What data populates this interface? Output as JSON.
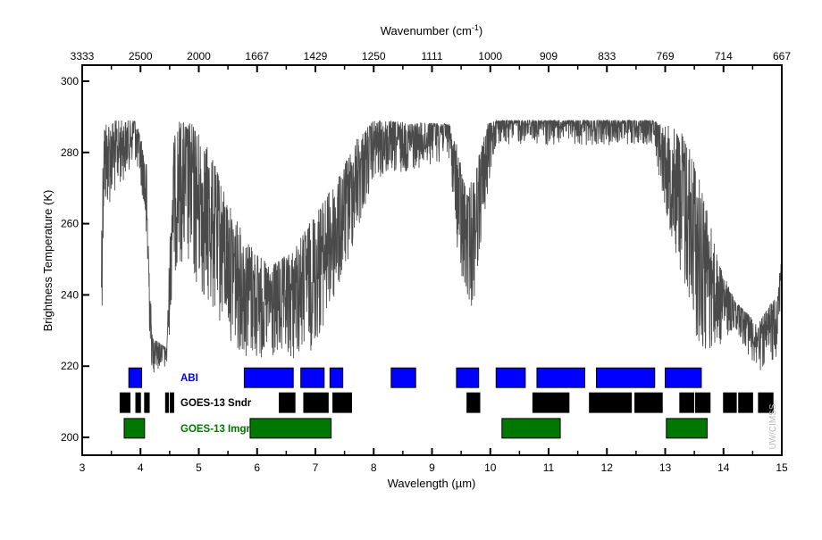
{
  "chart_data": {
    "type": "line",
    "title": "",
    "xlabel": "Wavelength (µm)",
    "x2label_main": "Wavenumber (cm",
    "x2label_sup": "-1",
    "x2label_close": ")",
    "ylabel": "Brightness Temperature (K)",
    "xlim": [
      3,
      15
    ],
    "ylim": [
      195,
      304.5
    ],
    "xticks": [
      3,
      4,
      5,
      6,
      7,
      8,
      9,
      10,
      11,
      12,
      13,
      14,
      15
    ],
    "x2ticks": [
      "3333",
      "2500",
      "2000",
      "1667",
      "1429",
      "1250",
      "1111",
      "1000",
      "909",
      "833",
      "769",
      "714",
      "667"
    ],
    "yticks": [
      200,
      220,
      240,
      260,
      280,
      300
    ],
    "spectrum": {
      "color": "#4a4a4a",
      "upper_envelope": [
        [
          3.33,
          262
        ],
        [
          3.37,
          289
        ],
        [
          3.9,
          289
        ],
        [
          4.0,
          285
        ],
        [
          4.1,
          278
        ],
        [
          4.15,
          250
        ],
        [
          4.2,
          228
        ],
        [
          4.45,
          225
        ],
        [
          4.55,
          282
        ],
        [
          4.65,
          289
        ],
        [
          4.9,
          288
        ],
        [
          5.2,
          280
        ],
        [
          5.5,
          266
        ],
        [
          5.8,
          256
        ],
        [
          6.2,
          248
        ],
        [
          6.6,
          252
        ],
        [
          7.0,
          263
        ],
        [
          7.4,
          273
        ],
        [
          7.7,
          284
        ],
        [
          8.0,
          289
        ],
        [
          9.3,
          288
        ],
        [
          9.45,
          281
        ],
        [
          9.6,
          268
        ],
        [
          9.75,
          276
        ],
        [
          9.95,
          288
        ],
        [
          10.1,
          289
        ],
        [
          12.8,
          289
        ],
        [
          13.3,
          286
        ],
        [
          13.5,
          278
        ],
        [
          13.7,
          266
        ],
        [
          13.9,
          250
        ],
        [
          14.2,
          238
        ],
        [
          14.6,
          232
        ],
        [
          14.9,
          240
        ],
        [
          15,
          250
        ]
      ],
      "lower_envelope": [
        [
          3.33,
          226
        ],
        [
          3.37,
          262
        ],
        [
          3.9,
          278
        ],
        [
          4.05,
          266
        ],
        [
          4.15,
          230
        ],
        [
          4.2,
          218
        ],
        [
          4.45,
          218
        ],
        [
          4.55,
          242
        ],
        [
          4.65,
          250
        ],
        [
          5.0,
          240
        ],
        [
          5.5,
          228
        ],
        [
          5.8,
          222
        ],
        [
          6.5,
          220
        ],
        [
          7.0,
          225
        ],
        [
          7.4,
          240
        ],
        [
          7.7,
          256
        ],
        [
          8.0,
          272
        ],
        [
          9.3,
          278
        ],
        [
          9.5,
          240
        ],
        [
          9.7,
          236
        ],
        [
          9.9,
          262
        ],
        [
          10.1,
          282
        ],
        [
          12.8,
          282
        ],
        [
          13.0,
          264
        ],
        [
          13.5,
          228
        ],
        [
          13.7,
          222
        ],
        [
          14.2,
          230
        ],
        [
          14.6,
          218
        ],
        [
          14.9,
          222
        ],
        [
          15,
          242
        ]
      ]
    },
    "instruments": [
      {
        "name": "ABI",
        "color": "#0000ff",
        "level": [
          214,
          219.5
        ],
        "bands": [
          [
            3.8,
            4.02
          ],
          [
            5.78,
            6.62
          ],
          [
            6.75,
            7.15
          ],
          [
            7.25,
            7.47
          ],
          [
            8.3,
            8.72
          ],
          [
            9.42,
            9.8
          ],
          [
            10.1,
            10.6
          ],
          [
            10.8,
            11.62
          ],
          [
            11.82,
            12.82
          ],
          [
            13.0,
            13.62
          ]
        ]
      },
      {
        "name": "GOES-13 Sndr",
        "color": "#000000",
        "level": [
          207,
          212.5
        ],
        "bands": [
          [
            3.65,
            3.82
          ],
          [
            3.92,
            4.0
          ],
          [
            4.07,
            4.15
          ],
          [
            4.43,
            4.48
          ],
          [
            4.51,
            4.57
          ],
          [
            6.38,
            6.65
          ],
          [
            6.8,
            7.22
          ],
          [
            7.3,
            7.62
          ],
          [
            9.6,
            9.82
          ],
          [
            10.73,
            11.35
          ],
          [
            11.7,
            12.42
          ],
          [
            12.48,
            12.95
          ],
          [
            13.25,
            13.49
          ],
          [
            13.52,
            13.77
          ],
          [
            14.0,
            14.22
          ],
          [
            14.26,
            14.5
          ],
          [
            14.6,
            14.85
          ]
        ]
      },
      {
        "name": "GOES-13 Imgr",
        "color": "#007700",
        "level": [
          199.8,
          205.3
        ],
        "bands": [
          [
            3.72,
            4.07
          ],
          [
            5.88,
            7.27
          ],
          [
            10.2,
            11.2
          ],
          [
            13.02,
            13.72
          ]
        ]
      }
    ],
    "legend": "inline-left",
    "grid": false,
    "watermark": "UW/CIMSS"
  }
}
